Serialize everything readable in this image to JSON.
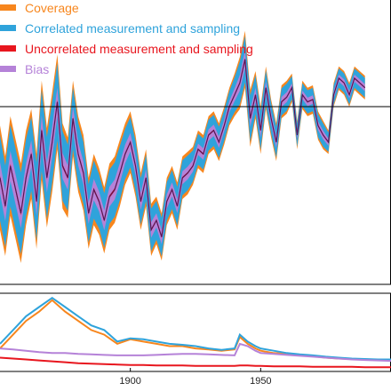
{
  "colors": {
    "coverage": "#f7861d",
    "correlated": "#2fa3db",
    "uncorrelated": "#e8161e",
    "bias": "#b582d8",
    "median": "#5a1452",
    "axis": "#000000",
    "zero_line": "#000000"
  },
  "chart_data": [
    {
      "type": "area",
      "title": "",
      "xlabel": "",
      "ylabel": "",
      "xlim": [
        1850,
        2000
      ],
      "ylim": [
        -0.75,
        0.45
      ],
      "reference_line_y": 0,
      "grid": false,
      "legend_position": "top-left",
      "legend": [
        {
          "name": "Coverage",
          "color": "#f7861d"
        },
        {
          "name": "Correlated measurement and sampling",
          "color": "#2fa3db"
        },
        {
          "name": "Uncorrelated measurement and sampling",
          "color": "#e8161e"
        },
        {
          "name": "Bias",
          "color": "#b582d8"
        }
      ],
      "x": [
        1850,
        1852,
        1854,
        1856,
        1858,
        1860,
        1862,
        1864,
        1866,
        1868,
        1870,
        1872,
        1874,
        1876,
        1878,
        1880,
        1882,
        1884,
        1886,
        1888,
        1890,
        1892,
        1894,
        1896,
        1898,
        1900,
        1902,
        1904,
        1906,
        1908,
        1910,
        1912,
        1914,
        1916,
        1918,
        1920,
        1922,
        1924,
        1926,
        1928,
        1930,
        1932,
        1934,
        1936,
        1938,
        1940,
        1942,
        1944,
        1946,
        1948,
        1950,
        1952,
        1954,
        1956,
        1958,
        1960,
        1962,
        1964,
        1966,
        1968,
        1970,
        1972,
        1974,
        1976,
        1978,
        1980,
        1982,
        1984,
        1986,
        1988,
        1990
      ],
      "median": [
        -0.3,
        -0.42,
        -0.25,
        -0.35,
        -0.45,
        -0.3,
        -0.2,
        -0.4,
        -0.1,
        -0.3,
        -0.15,
        0.02,
        -0.25,
        -0.3,
        -0.05,
        -0.2,
        -0.28,
        -0.45,
        -0.35,
        -0.4,
        -0.48,
        -0.38,
        -0.35,
        -0.28,
        -0.2,
        -0.15,
        -0.25,
        -0.4,
        -0.3,
        -0.52,
        -0.48,
        -0.55,
        -0.4,
        -0.35,
        -0.42,
        -0.3,
        -0.28,
        -0.25,
        -0.18,
        -0.2,
        -0.12,
        -0.1,
        -0.15,
        -0.08,
        0.0,
        0.05,
        0.1,
        0.2,
        -0.05,
        0.05,
        -0.1,
        0.08,
        -0.05,
        -0.15,
        0.02,
        0.04,
        0.08,
        -0.12,
        0.05,
        0.02,
        0.03,
        -0.08,
        -0.12,
        -0.15,
        0.05,
        0.12,
        0.1,
        0.05,
        0.12,
        0.1,
        0.08
      ],
      "total_halfwidth": [
        0.22,
        0.21,
        0.21,
        0.21,
        0.21,
        0.2,
        0.19,
        0.2,
        0.21,
        0.21,
        0.21,
        0.2,
        0.18,
        0.17,
        0.16,
        0.16,
        0.16,
        0.15,
        0.15,
        0.14,
        0.14,
        0.14,
        0.14,
        0.14,
        0.13,
        0.13,
        0.13,
        0.12,
        0.12,
        0.11,
        0.1,
        0.1,
        0.1,
        0.1,
        0.1,
        0.09,
        0.09,
        0.08,
        0.08,
        0.08,
        0.08,
        0.08,
        0.08,
        0.08,
        0.08,
        0.09,
        0.11,
        0.12,
        0.12,
        0.1,
        0.1,
        0.09,
        0.08,
        0.08,
        0.07,
        0.07,
        0.06,
        0.06,
        0.06,
        0.06,
        0.06,
        0.06,
        0.06,
        0.05,
        0.05,
        0.05,
        0.05,
        0.05,
        0.05,
        0.05,
        0.05
      ]
    },
    {
      "type": "line",
      "title": "",
      "xlabel": "",
      "ylabel": "",
      "xlim": [
        1850,
        2000
      ],
      "ylim": [
        0,
        0.17
      ],
      "x_ticks": [
        "1900",
        "1950"
      ],
      "x_tick_values": [
        1900,
        1950
      ],
      "grid": false,
      "x": [
        1850,
        1855,
        1860,
        1865,
        1870,
        1875,
        1880,
        1885,
        1890,
        1895,
        1900,
        1905,
        1910,
        1915,
        1920,
        1925,
        1930,
        1935,
        1940,
        1942,
        1945,
        1948,
        1950,
        1955,
        1960,
        1965,
        1970,
        1975,
        1980,
        1985,
        1990,
        1995,
        2000
      ],
      "series": [
        {
          "name": "Coverage",
          "color": "#f7861d",
          "values": [
            0.05,
            0.08,
            0.11,
            0.13,
            0.155,
            0.13,
            0.11,
            0.09,
            0.08,
            0.06,
            0.07,
            0.065,
            0.06,
            0.055,
            0.055,
            0.05,
            0.048,
            0.045,
            0.048,
            0.075,
            0.06,
            0.05,
            0.045,
            0.04,
            0.038,
            0.035,
            0.033,
            0.03,
            0.028,
            0.027,
            0.026,
            0.025,
            0.025
          ]
        },
        {
          "name": "Correlated measurement and sampling",
          "color": "#2fa3db",
          "values": [
            0.06,
            0.09,
            0.12,
            0.14,
            0.16,
            0.14,
            0.12,
            0.1,
            0.09,
            0.065,
            0.072,
            0.07,
            0.065,
            0.06,
            0.058,
            0.055,
            0.05,
            0.047,
            0.05,
            0.08,
            0.065,
            0.055,
            0.05,
            0.045,
            0.04,
            0.037,
            0.035,
            0.032,
            0.03,
            0.028,
            0.027,
            0.026,
            0.026
          ]
        },
        {
          "name": "Uncorrelated measurement and sampling",
          "color": "#e8161e",
          "values": [
            0.03,
            0.028,
            0.026,
            0.024,
            0.022,
            0.02,
            0.018,
            0.017,
            0.016,
            0.015,
            0.014,
            0.014,
            0.013,
            0.013,
            0.013,
            0.012,
            0.012,
            0.012,
            0.012,
            0.013,
            0.013,
            0.012,
            0.012,
            0.011,
            0.011,
            0.011,
            0.01,
            0.01,
            0.01,
            0.01,
            0.009,
            0.009,
            0.009
          ]
        },
        {
          "name": "Bias",
          "color": "#b582d8",
          "values": [
            0.05,
            0.048,
            0.045,
            0.042,
            0.04,
            0.04,
            0.038,
            0.037,
            0.036,
            0.035,
            0.035,
            0.035,
            0.036,
            0.037,
            0.038,
            0.038,
            0.037,
            0.036,
            0.035,
            0.06,
            0.055,
            0.045,
            0.04,
            0.038,
            0.036,
            0.034,
            0.032,
            0.03,
            0.028,
            0.026,
            0.025,
            0.024,
            0.023
          ]
        }
      ]
    }
  ]
}
